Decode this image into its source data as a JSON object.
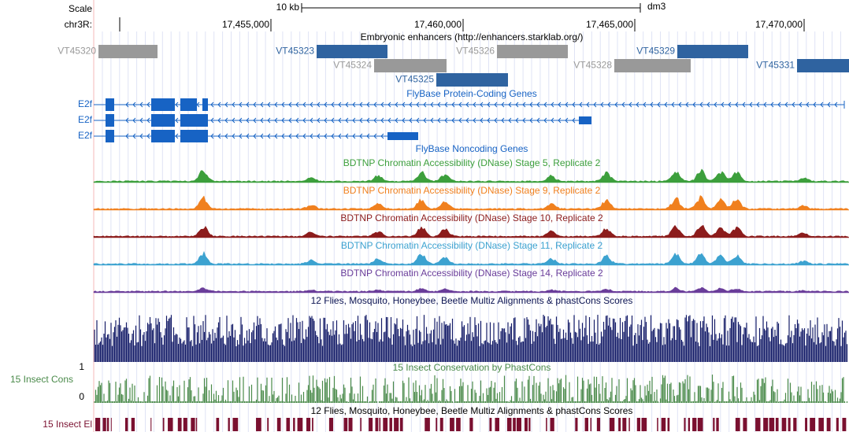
{
  "scale": {
    "label": "Scale",
    "size": "10 kb",
    "assembly": "dm3"
  },
  "chrom": {
    "label": "chr3R:",
    "ticks": [
      "17,455,000",
      "17,460,000",
      "17,465,000",
      "17,470,000"
    ]
  },
  "enhancers": {
    "title": "Embryonic enhancers (http://enhancers.starklab.org/)",
    "items": [
      {
        "name": "VT45320",
        "color": "#999999"
      },
      {
        "name": "VT45323",
        "color": "#2f63a0"
      },
      {
        "name": "VT45326",
        "color": "#999999"
      },
      {
        "name": "VT45329",
        "color": "#2f63a0"
      },
      {
        "name": "VT45324",
        "color": "#999999"
      },
      {
        "name": "VT45328",
        "color": "#999999"
      },
      {
        "name": "VT45331",
        "color": "#2f63a0"
      },
      {
        "name": "VT45325",
        "color": "#2f63a0"
      }
    ]
  },
  "genes": {
    "title": "FlyBase Protein-Coding Genes",
    "color": "#1763c4",
    "rows": [
      "E2f",
      "E2f",
      "E2f"
    ]
  },
  "noncoding": {
    "title": "FlyBase Noncoding Genes"
  },
  "dnase": [
    {
      "title": "BDTNP Chromatin Accessibility (DNase) Stage 5, Replicate 2",
      "color": "#3c9f3c"
    },
    {
      "title": "BDTNP Chromatin Accessibility (DNase) Stage 9, Replicate 2",
      "color": "#f0801e"
    },
    {
      "title": "BDTNP Chromatin Accessibility (DNase) Stage 10, Replicate 2",
      "color": "#8c1c1c"
    },
    {
      "title": "BDTNP Chromatin Accessibility (DNase) Stage 11, Replicate 2",
      "color": "#3ca2d0"
    },
    {
      "title": "BDTNP Chromatin Accessibility (DNase) Stage 14, Replicate 2",
      "color": "#6a3d9a"
    }
  ],
  "multiz": {
    "title": "12 Flies, Mosquito, Honeybee, Beetle Multiz Alignments & phastCons Scores",
    "color": "#141c68"
  },
  "cons": {
    "label": "15 Insect Cons",
    "title": "15 Insect Conservation by PhastCons",
    "max": "1",
    "min": "0",
    "color": "#4a8a4a"
  },
  "elements": {
    "title": "12 Flies, Mosquito, Honeybee, Beetle Multiz Alignments & phastCons Scores",
    "label": "15 Insect El",
    "color": "#7a1030"
  }
}
